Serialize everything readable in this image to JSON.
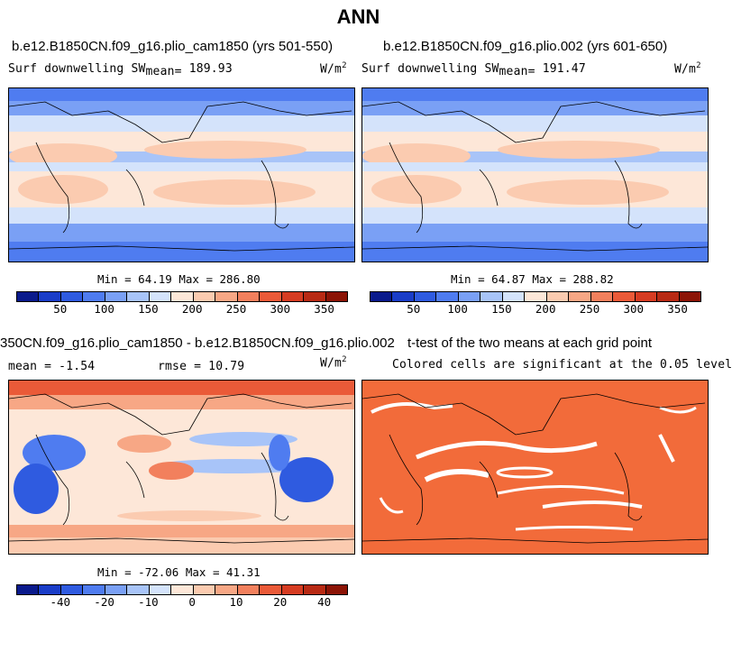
{
  "title": "ANN",
  "panel_top_left": {
    "case_title": "b.e12.B1850CN.f09_g16.plio_cam1850 (yrs 501-550)",
    "variable": "Surf downwelling SW",
    "mean_label": "mean=",
    "mean_value": "189.93",
    "units_base": "W/m",
    "units_exp": "2",
    "min_label": "Min =",
    "min_value": "64.19",
    "max_label": "Max =",
    "max_value": "286.80"
  },
  "panel_top_right": {
    "case_title": "b.e12.B1850CN.f09_g16.plio.002 (yrs 601-650)",
    "variable": "Surf downwelling SW",
    "mean_label": "mean=",
    "mean_value": "191.47",
    "units_base": "W/m",
    "units_exp": "2",
    "min_label": "Min =",
    "min_value": "64.87",
    "max_label": "Max =",
    "max_value": "288.82"
  },
  "panel_bottom_left": {
    "case_title": "350CN.f09_g16.plio_cam1850 - b.e12.B1850CN.f09_g16.plio.002",
    "mean_text": "mean =  -1.54",
    "rmse_text": "rmse =  10.79",
    "units_base": "W/m",
    "units_exp": "2",
    "min_label": "Min =",
    "min_value": "-72.06",
    "max_label": "Max =",
    "max_value": "41.31"
  },
  "panel_bottom_right": {
    "title": "t-test of the two means at each grid point",
    "subtitle": "Colored cells are significant at the 0.05 level"
  },
  "colorbar_abs": {
    "labels": [
      "50",
      "100",
      "150",
      "200",
      "250",
      "300",
      "350"
    ],
    "colors": [
      "#0a1a8c",
      "#1a3dc8",
      "#2f5be0",
      "#4f7cf0",
      "#7aa0f5",
      "#a8c4f8",
      "#d4e3fb",
      "#fde7d8",
      "#fbcbb0",
      "#f7a785",
      "#f2805d",
      "#ea5a38",
      "#d63c22",
      "#b82a14",
      "#8c1406"
    ]
  },
  "colorbar_diff": {
    "labels": [
      "-40",
      "-20",
      "-10",
      "0",
      "10",
      "20",
      "40"
    ],
    "colors": [
      "#0a1a8c",
      "#1a3dc8",
      "#2f5be0",
      "#4f7cf0",
      "#7aa0f5",
      "#a8c4f8",
      "#d4e3fb",
      "#fde7d8",
      "#fbcbb0",
      "#f7a785",
      "#f2805d",
      "#ea5a38",
      "#d63c22",
      "#b82a14",
      "#8c1406"
    ]
  },
  "significance_color": "#f26b3a"
}
